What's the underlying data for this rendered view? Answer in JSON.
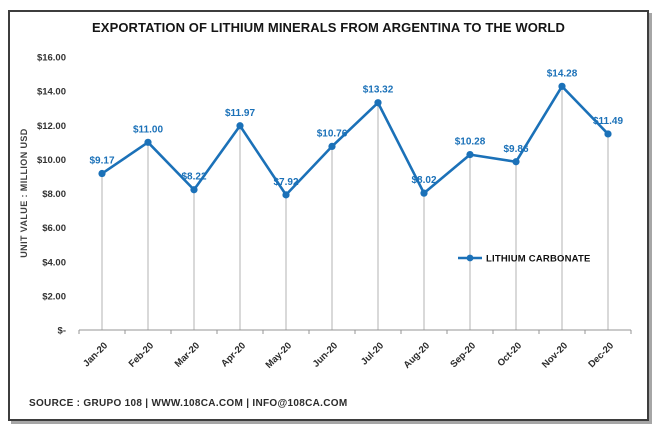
{
  "chart_data": {
    "type": "line",
    "title": "EXPORTATION OF LITHIUM MINERALS FROM ARGENTINA TO THE WORLD",
    "categories": [
      "Jan-20",
      "Feb-20",
      "Mar-20",
      "Apr-20",
      "May-20",
      "Jun-20",
      "Jul-20",
      "Aug-20",
      "Sep-20",
      "Oct-20",
      "Nov-20",
      "Dec-20"
    ],
    "series": [
      {
        "name": "LITHIUM CARBONATE",
        "values": [
          9.17,
          11.0,
          8.22,
          11.97,
          7.92,
          10.76,
          13.32,
          8.02,
          10.28,
          9.86,
          14.28,
          11.49
        ],
        "labels": [
          "$9.17",
          "$11.00",
          "$8.22",
          "$11.97",
          "$7.92",
          "$10.76",
          "$13.32",
          "$8.02",
          "$10.28",
          "$9.86",
          "$14.28",
          "$11.49"
        ],
        "color": "#1b71b8"
      }
    ],
    "xlabel": "",
    "ylabel": "UNIT VALUE : MILLION USD",
    "ylim": [
      0,
      16
    ],
    "ytick_step": 2,
    "ytick_labels": [
      "$-",
      "$2.00",
      "$4.00",
      "$6.00",
      "$8.00",
      "$10.00",
      "$12.00",
      "$14.00",
      "$16.00"
    ],
    "legend": {
      "entries": [
        "LITHIUM CARBONATE"
      ],
      "position": "inside-right"
    },
    "grid": "vertical-drop-lines",
    "colors": {
      "line": "#1b71b8",
      "data_label": "#1b71b8",
      "drop_line": "#b3b3b3",
      "axis": "#949494",
      "tick_label": "#333333",
      "title": "#151515"
    }
  },
  "footer": {
    "source_text": "SOURCE : GRUPO 108 | WWW.108CA.COM | INFO@108CA.COM"
  }
}
